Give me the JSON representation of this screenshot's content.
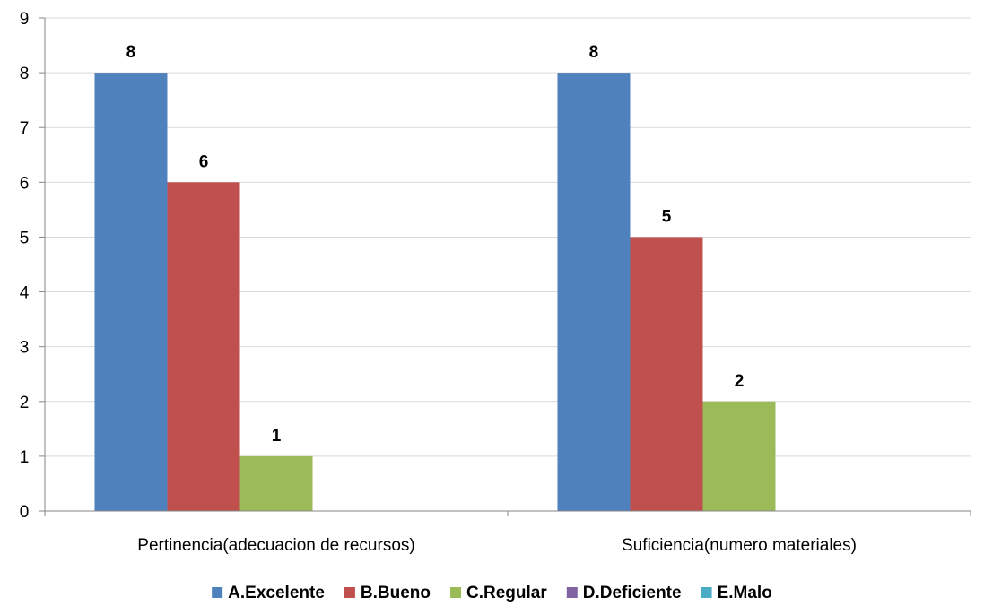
{
  "chart_data": {
    "type": "bar",
    "categories": [
      "Pertinencia(adecuacion de recursos)",
      "Suficiencia(numero materiales)"
    ],
    "series": [
      {
        "name": "A.Excelente",
        "values": [
          8,
          8
        ],
        "color": "#4F81BD"
      },
      {
        "name": "B.Bueno",
        "values": [
          6,
          5
        ],
        "color": "#C0504D"
      },
      {
        "name": "C.Regular",
        "values": [
          1,
          2
        ],
        "color": "#9BBB59"
      },
      {
        "name": "D.Deficiente",
        "values": [
          null,
          null
        ],
        "color": "#8064A2"
      },
      {
        "name": "E.Malo",
        "values": [
          null,
          null
        ],
        "color": "#4BACC6"
      }
    ],
    "ylim": [
      0,
      9
    ],
    "yticks": [
      "0",
      "1",
      "2",
      "3",
      "4",
      "5",
      "6",
      "7",
      "8",
      "9"
    ],
    "grid": true,
    "legend_position": "bottom",
    "data_labels": true,
    "title": "",
    "xlabel": "",
    "ylabel": ""
  }
}
